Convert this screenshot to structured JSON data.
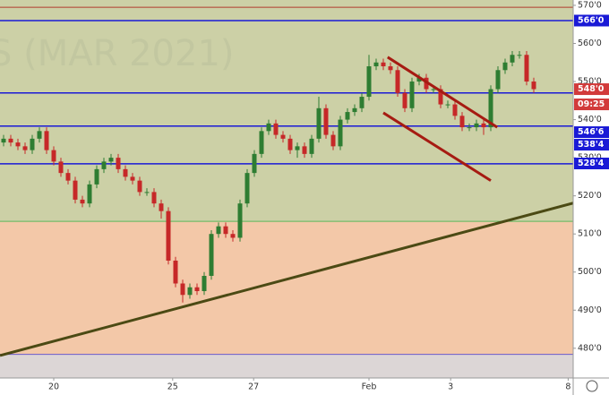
{
  "chart_data": {
    "type": "candlestick",
    "watermark": "S (MAR 2021)",
    "up_color": "#2e7d32",
    "down_color": "#c62828",
    "open": [
      534,
      535,
      534,
      533,
      532,
      535,
      537,
      532,
      529,
      526,
      524,
      519,
      518,
      523,
      527,
      529,
      530,
      527,
      525,
      524,
      521,
      521,
      518,
      516,
      503,
      497,
      494,
      496,
      495,
      499,
      510,
      512,
      510,
      509,
      518,
      526,
      531,
      537,
      539,
      536,
      535,
      532,
      533,
      531,
      535,
      543,
      536,
      533,
      540,
      542,
      543,
      546,
      554,
      555,
      554,
      553,
      547,
      543,
      550,
      551,
      548,
      548,
      544,
      544,
      541,
      538,
      538,
      539,
      538,
      548,
      553,
      555,
      557,
      557,
      550
    ],
    "high": [
      536,
      536,
      535,
      534,
      536,
      538,
      538,
      533,
      530,
      527,
      525,
      520,
      524,
      528,
      530,
      531,
      531,
      528,
      526,
      525,
      522,
      522,
      519,
      517,
      504,
      498,
      497,
      497,
      500,
      511,
      513,
      513,
      511,
      519,
      527,
      532,
      538,
      540,
      540,
      537,
      536,
      534,
      534,
      536,
      546,
      544,
      537,
      541,
      543,
      544,
      547,
      557,
      556,
      556,
      555,
      554,
      548,
      551,
      552,
      552,
      549,
      549,
      545,
      545,
      542,
      539,
      540,
      540,
      549,
      554,
      556,
      558,
      558,
      558,
      551
    ],
    "low": [
      533,
      533,
      532,
      531,
      531,
      534,
      531,
      528,
      525,
      523,
      518,
      517,
      517,
      522,
      526,
      528,
      526,
      524,
      523,
      520,
      520,
      517,
      514,
      502,
      496,
      492,
      493,
      494,
      494,
      498,
      509,
      509,
      508,
      508,
      517,
      525,
      530,
      536,
      535,
      534,
      531,
      530,
      530,
      530,
      534,
      535,
      532,
      532,
      539,
      541,
      542,
      545,
      553,
      553,
      552,
      546,
      542,
      542,
      549,
      547,
      547,
      543,
      543,
      540,
      537,
      537,
      537,
      536,
      537,
      547,
      552,
      554,
      556,
      549,
      547
    ],
    "close": [
      535,
      534,
      533,
      532,
      535,
      537,
      532,
      529,
      526,
      524,
      519,
      518,
      523,
      527,
      529,
      530,
      527,
      525,
      524,
      521,
      521,
      518,
      516,
      503,
      497,
      494,
      496,
      495,
      499,
      510,
      512,
      510,
      509,
      518,
      526,
      531,
      537,
      539,
      536,
      535,
      532,
      533,
      531,
      535,
      543,
      536,
      533,
      540,
      542,
      543,
      546,
      554,
      555,
      554,
      553,
      547,
      543,
      550,
      551,
      548,
      548,
      544,
      544,
      541,
      538,
      538,
      539,
      538,
      548,
      553,
      555,
      557,
      557,
      550,
      548
    ],
    "xlim": [
      0,
      80
    ],
    "xticks": [
      {
        "value": 7.5,
        "label": "20"
      },
      {
        "value": 24.1,
        "label": "25"
      },
      {
        "value": 35.4,
        "label": "27"
      },
      {
        "value": 51.5,
        "label": "Feb"
      },
      {
        "value": 62.9,
        "label": "3"
      },
      {
        "value": 79.3,
        "label": "8"
      }
    ],
    "ylim": [
      472.2,
      571.4
    ],
    "yticks": [
      {
        "value": 570,
        "label": "570'0"
      },
      {
        "value": 560,
        "label": "560'0"
      },
      {
        "value": 550,
        "label": "550'0"
      },
      {
        "value": 540,
        "label": "540'0"
      },
      {
        "value": 530,
        "label": "530'0"
      },
      {
        "value": 520,
        "label": "520'0"
      },
      {
        "value": 510,
        "label": "510'0"
      },
      {
        "value": 500,
        "label": "500'0"
      },
      {
        "value": 490,
        "label": "490'0"
      },
      {
        "value": 480,
        "label": "480'0"
      }
    ],
    "grid": false,
    "zones": [
      {
        "from": 513.3,
        "to": 571.4,
        "color": "#ccd0a6"
      },
      {
        "from": 478.4,
        "to": 513.3,
        "color": "#f3c8a8"
      },
      {
        "from": 472.2,
        "to": 478.4,
        "color": "#dcd6d6"
      }
    ],
    "levels": [
      {
        "value": 569.5,
        "color": "#b03a2e"
      },
      {
        "value": 566,
        "color": "#1a1ad6"
      },
      {
        "value": 547,
        "color": "#1a1ad6"
      },
      {
        "value": 538.3,
        "color": "#1a1ad6"
      },
      {
        "value": 528.4,
        "color": "#1a1ad6"
      },
      {
        "value": 513.3,
        "color": "#5cb85c"
      },
      {
        "value": 478.4,
        "color": "#6a5acd"
      }
    ],
    "trend_lines": [
      {
        "from": [
          0,
          478.1
        ],
        "to": [
          80,
          518.1
        ],
        "color": "#4b4a14"
      },
      {
        "from": [
          54.1,
          556.4
        ],
        "to": [
          69.4,
          538
        ],
        "color": "#a61b12"
      },
      {
        "from": [
          53.5,
          541.8
        ],
        "to": [
          68.5,
          524
        ],
        "color": "#a61b12"
      }
    ],
    "price_labels": [
      {
        "value": 566,
        "label": "566'0",
        "color": "#1a1ad6"
      },
      {
        "value": 548,
        "label": "548'0",
        "color": "#d23b3b"
      },
      {
        "value": 546.75,
        "label": "546'6",
        "color": "#1a1ad6"
      },
      {
        "value": 538.5,
        "label": "538'4",
        "color": "#1a1ad6"
      },
      {
        "value": 528.5,
        "label": "528'4",
        "color": "#1a1ad6"
      }
    ],
    "countdown": {
      "label": "09:25",
      "color": "#d23b3b"
    }
  }
}
